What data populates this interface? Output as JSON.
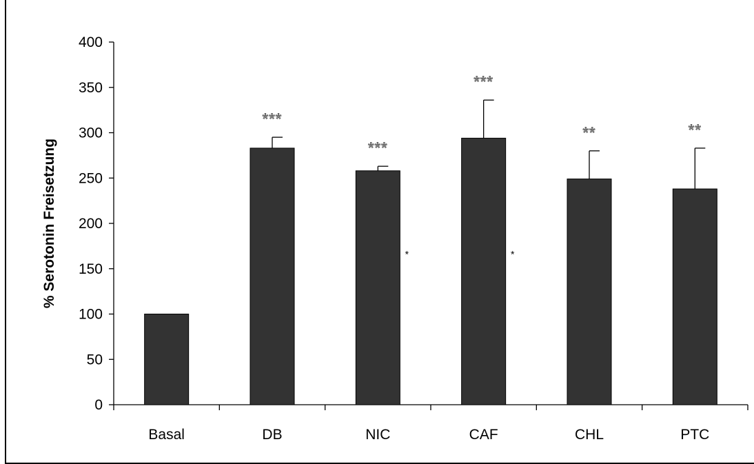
{
  "chart_data": {
    "type": "bar",
    "categories": [
      "Basal",
      "DB",
      "NIC",
      "CAF",
      "CHL",
      "PTC"
    ],
    "values": [
      100,
      283,
      258,
      294,
      249,
      238
    ],
    "error_plus": [
      0,
      12,
      5,
      42,
      31,
      45
    ],
    "significance": [
      "",
      "***",
      "***",
      "***",
      "**",
      "**"
    ],
    "inner_markers": [
      {
        "category": "NIC",
        "y": 170,
        "text": "*"
      },
      {
        "category": "CAF",
        "y": 170,
        "text": "*"
      }
    ],
    "xlabel": "",
    "ylabel": "% Serotonin Freisetzung",
    "ylim": [
      0,
      400
    ],
    "yticks": [
      0,
      50,
      100,
      150,
      200,
      250,
      300,
      350,
      400
    ],
    "bar_color": "#333333",
    "grid": false,
    "legend": "none"
  }
}
